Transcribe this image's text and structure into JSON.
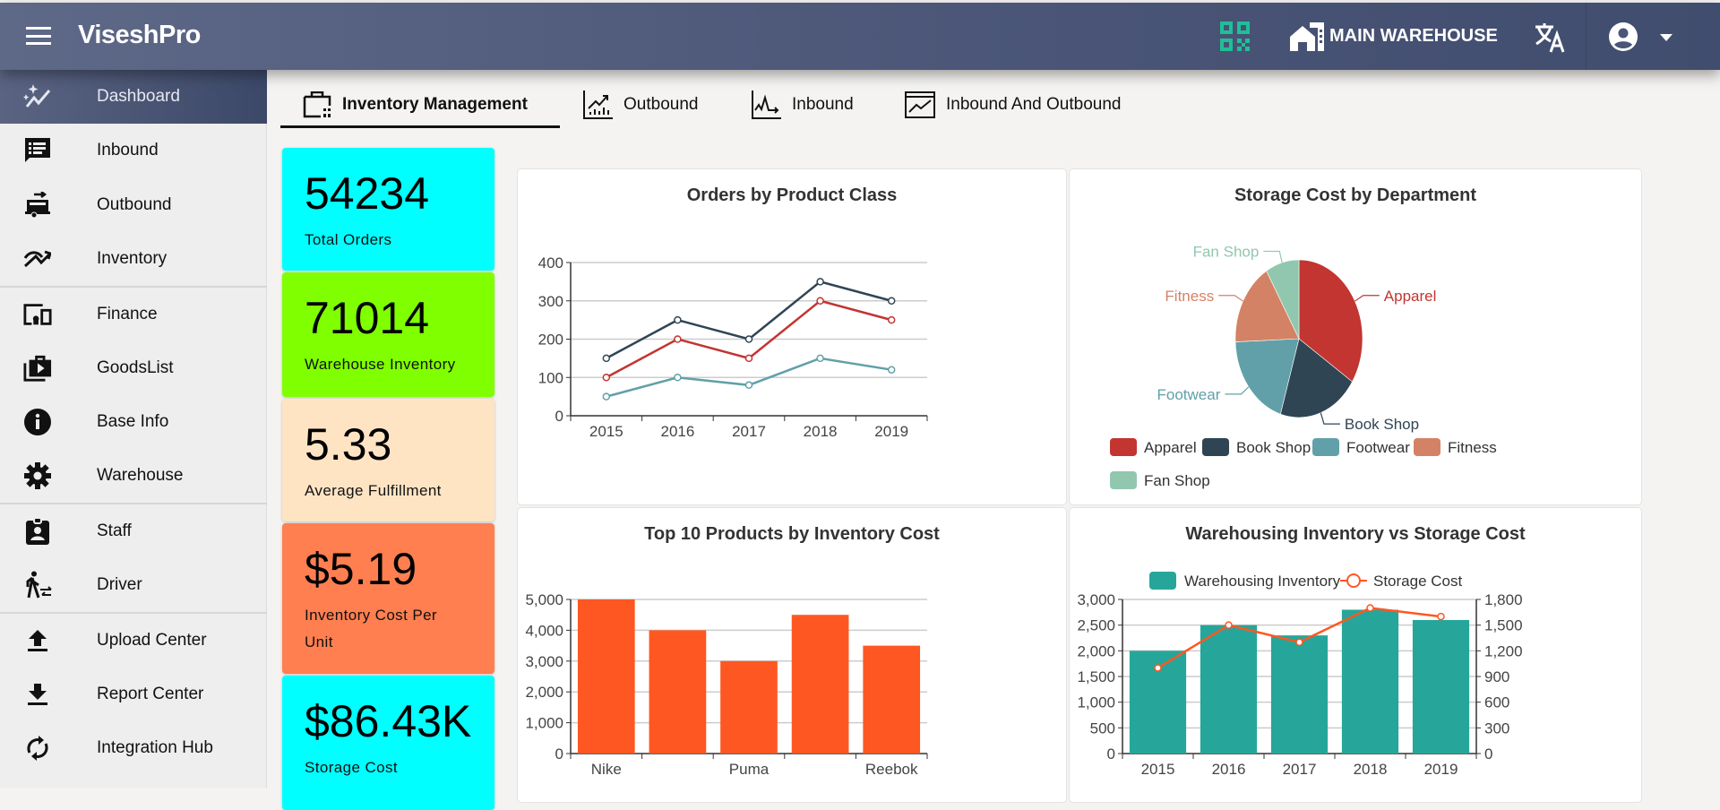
{
  "header": {
    "title": "ViseshPro",
    "warehouse": "MAIN WAREHOUSE",
    "icons": [
      "menu-icon",
      "qr-code-icon",
      "warehouse-icon",
      "translate-icon",
      "account-circle-icon",
      "caret-down-icon"
    ],
    "qr_color": "#1fbf98"
  },
  "sidebar": {
    "items": [
      {
        "label": "Dashboard",
        "icon": "dashboard-sparkle-icon",
        "active": true
      },
      {
        "label": "Inbound",
        "icon": "inbound-list-icon"
      },
      {
        "label": "Outbound",
        "icon": "outbound-truck-icon"
      },
      {
        "label": "Inventory",
        "icon": "inventory-trend-icon"
      },
      {
        "label": "Finance",
        "icon": "finance-devices-icon"
      },
      {
        "label": "GoodsList",
        "icon": "goods-list-icon"
      },
      {
        "label": "Base Info",
        "icon": "info-icon"
      },
      {
        "label": "Warehouse",
        "icon": "gear-icon"
      },
      {
        "label": "Staff",
        "icon": "staff-badge-icon"
      },
      {
        "label": "Driver",
        "icon": "driver-icon"
      },
      {
        "label": "Upload Center",
        "icon": "upload-icon"
      },
      {
        "label": "Report Center",
        "icon": "download-icon"
      },
      {
        "label": "Integration Hub",
        "icon": "sync-icon"
      }
    ]
  },
  "tabs": [
    {
      "label": "Inventory Management",
      "icon": "inventory-case-icon",
      "active": true
    },
    {
      "label": "Outbound",
      "icon": "chart-up-icon"
    },
    {
      "label": "Inbound",
      "icon": "pulse-chart-icon"
    },
    {
      "label": "Inbound And Outbound",
      "icon": "line-chart-icon"
    }
  ],
  "kpis": [
    {
      "value": "54234",
      "label": "Total Orders",
      "color": "#00ffff"
    },
    {
      "value": "71014",
      "label": "Warehouse Inventory",
      "color": "#7fff00"
    },
    {
      "value": "5.33",
      "label": "Average Fulfillment",
      "color": "#ffe4c4"
    },
    {
      "value": "$5.19",
      "label": "Inventory Cost Per Unit",
      "color": "#ff7f50"
    },
    {
      "value": "$86.43K",
      "label": "Storage Cost",
      "color": "#00ffff"
    }
  ],
  "chart_data": [
    {
      "type": "line",
      "title": "Orders by Product Class",
      "categories": [
        "2015",
        "2016",
        "2017",
        "2018",
        "2019"
      ],
      "ylim": [
        0,
        400
      ],
      "yticks": [
        "0",
        "100",
        "200",
        "300",
        "400"
      ],
      "grid": true,
      "series": [
        {
          "values": [
            150,
            250,
            200,
            350,
            300
          ],
          "color": "#2f4554"
        },
        {
          "values": [
            100,
            200,
            150,
            300,
            250
          ],
          "color": "#c23531"
        },
        {
          "values": [
            50,
            100,
            80,
            150,
            120
          ],
          "color": "#61a0a8"
        }
      ]
    },
    {
      "type": "pie",
      "title": "Storage Cost by Department",
      "legend": "bottom",
      "slices": [
        {
          "name": "Apparel",
          "value": 40,
          "color": "#c23531"
        },
        {
          "name": "Book Shop",
          "value": 24,
          "color": "#2f4554"
        },
        {
          "name": "Footwear",
          "value": 23,
          "color": "#61a0a8"
        },
        {
          "name": "Fitness",
          "value": 20,
          "color": "#d48265"
        },
        {
          "name": "Fan Shop",
          "value": 10,
          "color": "#91c7ae"
        }
      ]
    },
    {
      "type": "bar",
      "title": "Top 10 Products by Inventory Cost",
      "categories": [
        "Nike",
        "",
        "Puma",
        "",
        "Reebok"
      ],
      "values": [
        5000,
        4000,
        3000,
        4500,
        3500
      ],
      "ylim": [
        0,
        5000
      ],
      "yticks": [
        "0",
        "1,000",
        "2,000",
        "3,000",
        "4,000",
        "5,000"
      ],
      "color": "#ff5722",
      "grid": true
    },
    {
      "type": "bar+line",
      "title": "Warehousing Inventory vs Storage Cost",
      "categories": [
        "2015",
        "2016",
        "2017",
        "2018",
        "2019"
      ],
      "legend": "top",
      "series": [
        {
          "name": "Warehousing Inventory",
          "type": "bar",
          "values": [
            2000,
            2500,
            2300,
            2800,
            2600
          ],
          "color": "#26a69a",
          "ylim": [
            0,
            3000
          ],
          "yticks": [
            "0",
            "500",
            "1,000",
            "1,500",
            "2,000",
            "2,500",
            "3,000"
          ]
        },
        {
          "name": "Storage Cost",
          "type": "line",
          "values": [
            1000,
            1500,
            1300,
            1700,
            1600
          ],
          "color": "#ff5722",
          "ylim": [
            0,
            1800
          ],
          "yticks": [
            "0",
            "300",
            "600",
            "900",
            "1,200",
            "1,500",
            "1,800"
          ]
        }
      ]
    }
  ]
}
